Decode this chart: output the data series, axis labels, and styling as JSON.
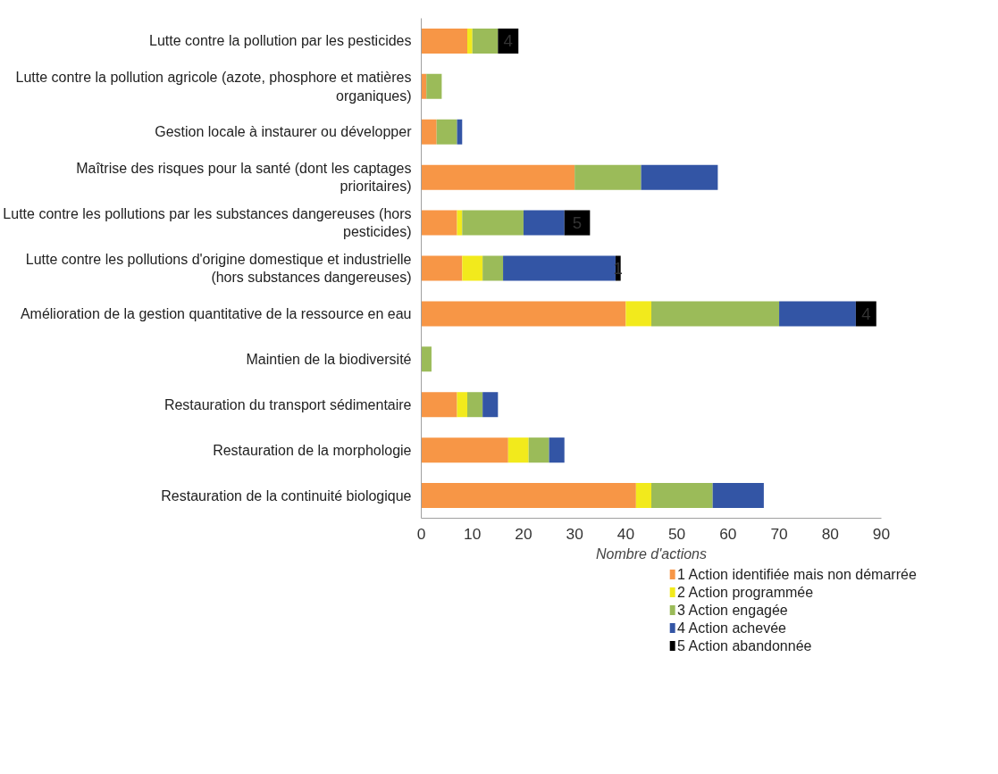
{
  "chart_data": {
    "type": "bar",
    "orientation": "horizontal",
    "stacked": true,
    "xlabel": "Nombre d'actions",
    "xlim": [
      0,
      90
    ],
    "xticks": [
      0,
      10,
      20,
      30,
      40,
      50,
      60,
      70,
      80,
      90
    ],
    "grid": false,
    "legend": "bottom",
    "categories": [
      "Lutte contre la pollution par les pesticides",
      "Lutte contre la pollution agricole (azote, phosphore et matières organiques)",
      "Gestion locale à instaurer ou développer",
      "Maîtrise des risques pour la santé (dont les captages prioritaires)",
      "Lutte contre les pollutions par les substances dangereuses (hors pesticides)",
      "Lutte contre les pollutions d'origine domestique et industrielle (hors substances dangereuses)",
      "Amélioration de la gestion quantitative de la ressource en eau",
      "Maintien de la biodiversité",
      "Restauration du transport sédimentaire",
      "Restauration de la morphologie",
      "Restauration de la continuité biologique"
    ],
    "series": [
      {
        "name": "1 Action identifiée mais non démarrée",
        "color": "#f79646",
        "values": [
          9,
          1,
          3,
          30,
          7,
          8,
          40,
          0,
          7,
          17,
          42
        ]
      },
      {
        "name": "2 Action programmée",
        "color": "#f2ea1c",
        "values": [
          1,
          0,
          0,
          0,
          1,
          4,
          5,
          0,
          2,
          4,
          3
        ]
      },
      {
        "name": "3 Action engagée",
        "color": "#9bbb59",
        "values": [
          5,
          3,
          4,
          13,
          12,
          4,
          25,
          2,
          3,
          4,
          12
        ]
      },
      {
        "name": "4 Action achevée",
        "color": "#3355a5",
        "values": [
          0,
          0,
          1,
          15,
          8,
          22,
          15,
          0,
          3,
          3,
          10
        ]
      },
      {
        "name": "5 Action abandonnée",
        "color": "#000000",
        "values": [
          4,
          0,
          0,
          0,
          5,
          1,
          4,
          0,
          0,
          0,
          0
        ],
        "value_labels": [
          "4",
          null,
          null,
          null,
          "5",
          "1",
          "4",
          null,
          null,
          null,
          null
        ]
      }
    ]
  }
}
